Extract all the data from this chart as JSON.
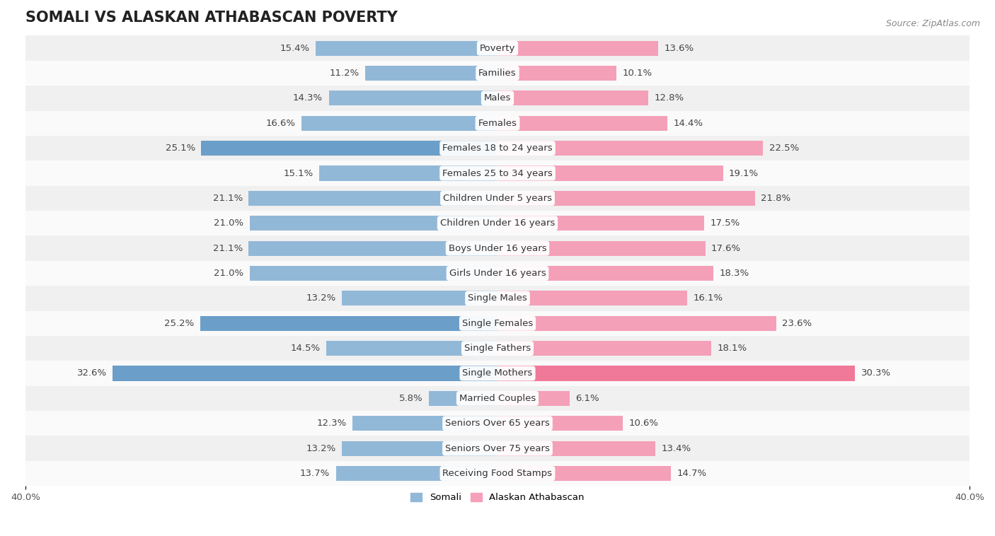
{
  "title": "SOMALI VS ALASKAN ATHABASCAN POVERTY",
  "source": "Source: ZipAtlas.com",
  "categories": [
    "Poverty",
    "Families",
    "Males",
    "Females",
    "Females 18 to 24 years",
    "Females 25 to 34 years",
    "Children Under 5 years",
    "Children Under 16 years",
    "Boys Under 16 years",
    "Girls Under 16 years",
    "Single Males",
    "Single Females",
    "Single Fathers",
    "Single Mothers",
    "Married Couples",
    "Seniors Over 65 years",
    "Seniors Over 75 years",
    "Receiving Food Stamps"
  ],
  "somali": [
    15.4,
    11.2,
    14.3,
    16.6,
    25.1,
    15.1,
    21.1,
    21.0,
    21.1,
    21.0,
    13.2,
    25.2,
    14.5,
    32.6,
    5.8,
    12.3,
    13.2,
    13.7
  ],
  "alaskan": [
    13.6,
    10.1,
    12.8,
    14.4,
    22.5,
    19.1,
    21.8,
    17.5,
    17.6,
    18.3,
    16.1,
    23.6,
    18.1,
    30.3,
    6.1,
    10.6,
    13.4,
    14.7
  ],
  "somali_color": "#92b8d8",
  "alaskan_color": "#f4a0b8",
  "somali_highlight_color": "#6b9ec8",
  "alaskan_highlight_color": "#f07898",
  "background_row_light": "#f0f0f0",
  "background_row_white": "#fafafa",
  "xlim": 40.0,
  "bar_height": 0.6,
  "title_fontsize": 15,
  "label_fontsize": 9.5,
  "tick_fontsize": 9.5,
  "source_fontsize": 9,
  "highlight_indices_somali": [
    4,
    11,
    13
  ],
  "highlight_indices_alaskan": [
    13
  ]
}
